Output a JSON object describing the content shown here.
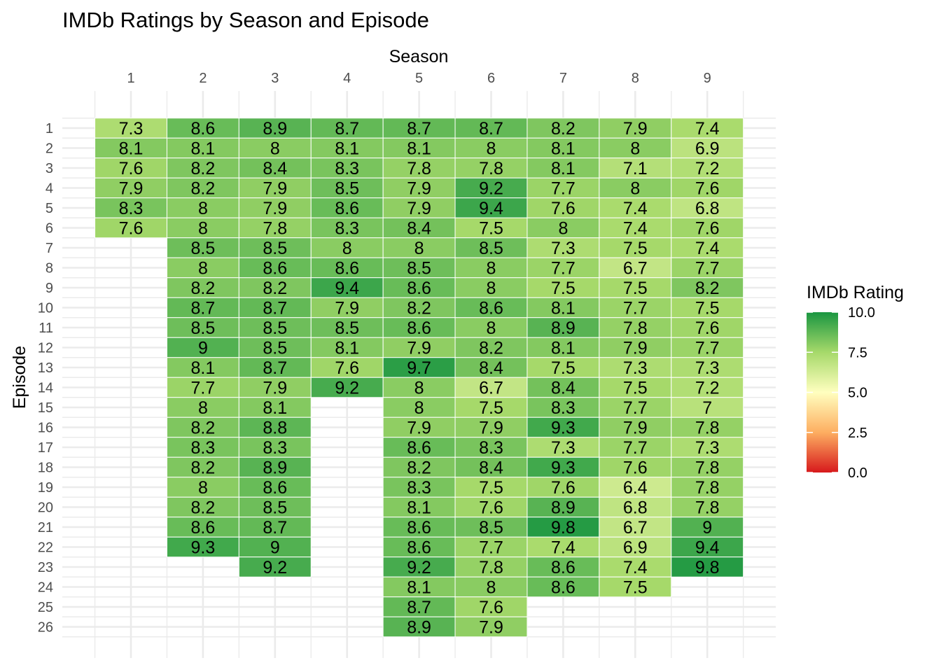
{
  "chart_data": {
    "type": "heatmap",
    "title": "IMDb Ratings by Season and Episode",
    "xlabel": "Season",
    "ylabel": "Episode",
    "x_axis_position": "top",
    "seasons": [
      "1",
      "2",
      "3",
      "4",
      "5",
      "6",
      "7",
      "8",
      "9"
    ],
    "episodes": [
      "1",
      "2",
      "3",
      "4",
      "5",
      "6",
      "7",
      "8",
      "9",
      "10",
      "11",
      "12",
      "13",
      "14",
      "15",
      "16",
      "17",
      "18",
      "19",
      "20",
      "21",
      "22",
      "23",
      "24",
      "25",
      "26"
    ],
    "ratings": [
      [
        "7.3",
        "8.1",
        "7.6",
        "7.9",
        "8.3",
        "7.6"
      ],
      [
        "8.6",
        "8.1",
        "8.2",
        "8.2",
        "8",
        "8",
        "8.5",
        "8",
        "8.2",
        "8.7",
        "8.5",
        "9",
        "8.1",
        "7.7",
        "8",
        "8.2",
        "8.3",
        "8.2",
        "8",
        "8.2",
        "8.6",
        "9.3"
      ],
      [
        "8.9",
        "8",
        "8.4",
        "7.9",
        "7.9",
        "7.8",
        "8.5",
        "8.6",
        "8.2",
        "8.7",
        "8.5",
        "8.5",
        "8.7",
        "7.9",
        "8.1",
        "8.8",
        "8.3",
        "8.9",
        "8.6",
        "8.5",
        "8.7",
        "9",
        "9.2"
      ],
      [
        "8.7",
        "8.1",
        "8.3",
        "8.5",
        "8.6",
        "8.3",
        "8",
        "8.6",
        "9.4",
        "7.9",
        "8.5",
        "8.1",
        "7.6",
        "9.2"
      ],
      [
        "8.7",
        "8.1",
        "7.8",
        "7.9",
        "7.9",
        "8.4",
        "8",
        "8.5",
        "8.6",
        "8.2",
        "8.6",
        "7.9",
        "9.7",
        "8",
        "8",
        "7.9",
        "8.6",
        "8.2",
        "8.3",
        "8.1",
        "8.6",
        "8.6",
        "9.2",
        "8.1",
        "8.7",
        "8.9"
      ],
      [
        "8.7",
        "8",
        "7.8",
        "9.2",
        "9.4",
        "7.5",
        "8.5",
        "8",
        "8",
        "8.6",
        "8",
        "8.2",
        "8.4",
        "6.7",
        "7.5",
        "7.9",
        "8.3",
        "8.4",
        "7.5",
        "7.6",
        "8.5",
        "7.7",
        "7.8",
        "8",
        "7.6",
        "7.9"
      ],
      [
        "8.2",
        "8.1",
        "8.1",
        "7.7",
        "7.6",
        "8",
        "7.3",
        "7.7",
        "7.5",
        "8.1",
        "8.9",
        "8.1",
        "7.5",
        "8.4",
        "8.3",
        "9.3",
        "7.3",
        "9.3",
        "7.6",
        "8.9",
        "9.8",
        "7.4",
        "8.6",
        "8.6"
      ],
      [
        "7.9",
        "8",
        "7.1",
        "8",
        "7.4",
        "7.4",
        "7.5",
        "6.7",
        "7.5",
        "7.7",
        "7.8",
        "7.9",
        "7.3",
        "7.5",
        "7.7",
        "7.9",
        "7.7",
        "7.6",
        "6.4",
        "6.8",
        "6.7",
        "6.9",
        "7.4",
        "7.5"
      ],
      [
        "7.4",
        "6.9",
        "7.2",
        "7.6",
        "6.8",
        "7.6",
        "7.4",
        "7.7",
        "8.2",
        "7.5",
        "7.6",
        "7.7",
        "7.3",
        "7.2",
        "7",
        "7.8",
        "7.3",
        "7.8",
        "7.8",
        "7.8",
        "9",
        "9.4",
        "9.8"
      ]
    ],
    "legend": {
      "title": "IMDb Rating",
      "position": "right",
      "ticks": [
        "10.0",
        "7.5",
        "5.0",
        "2.5",
        "0.0"
      ],
      "range": [
        0,
        10
      ],
      "colors": [
        "#d7191c",
        "#fdae61",
        "#ffffbf",
        "#a6d96a",
        "#1a9641"
      ]
    },
    "grid": true
  }
}
